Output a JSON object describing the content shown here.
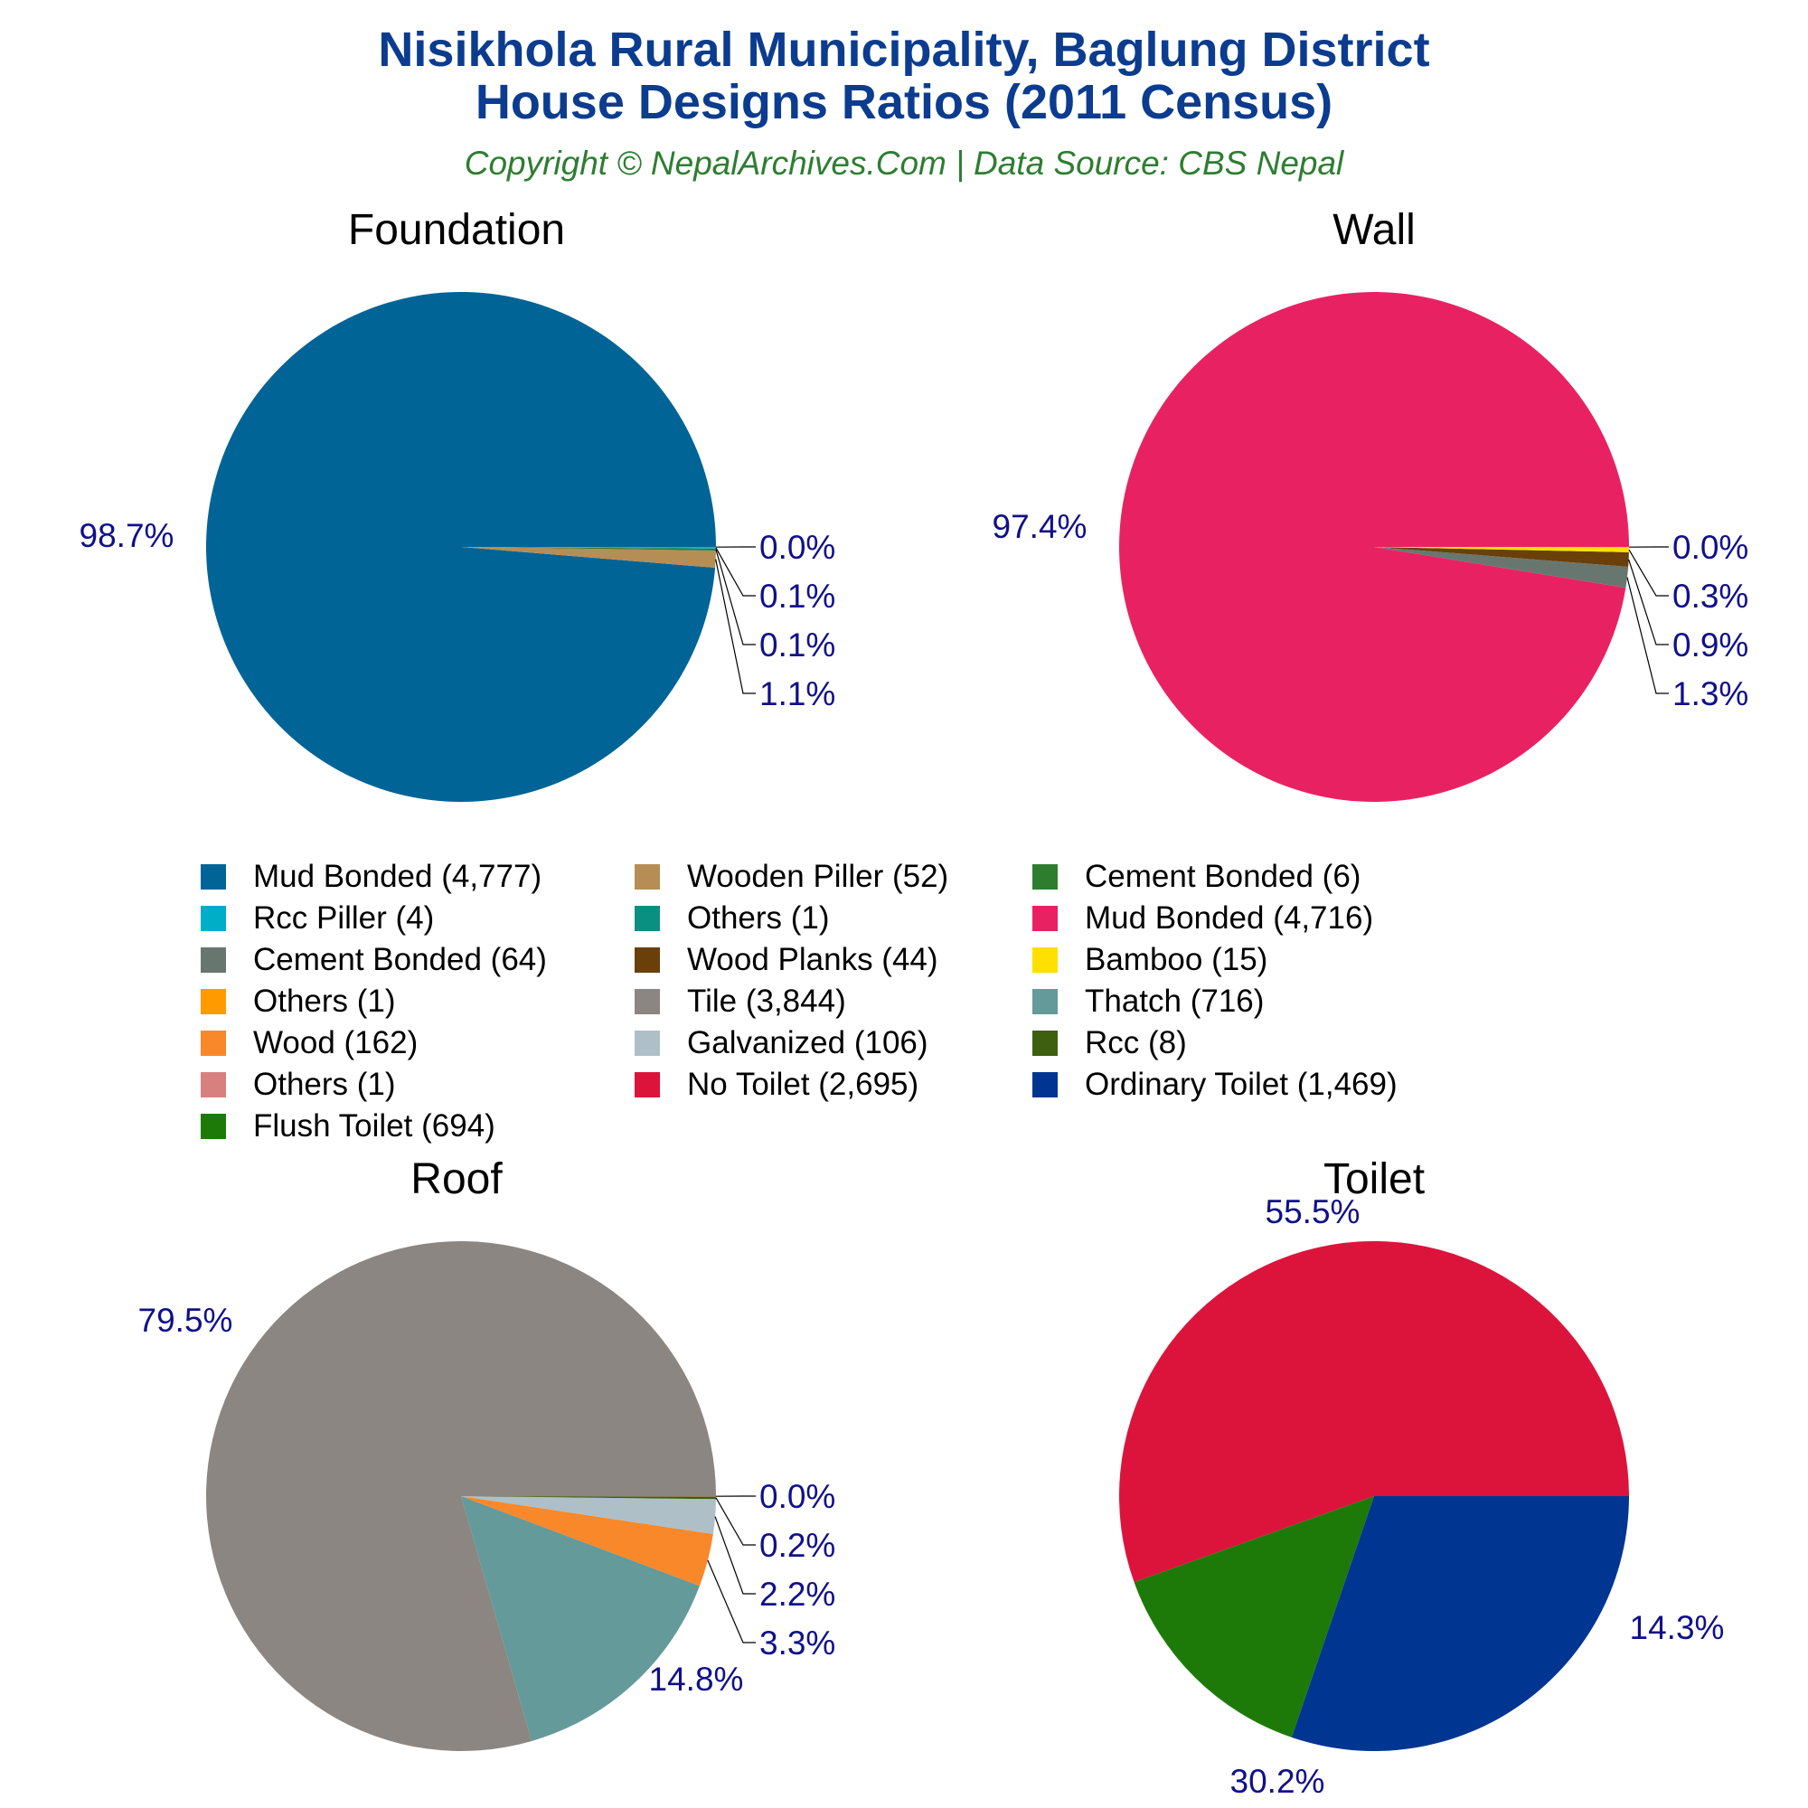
{
  "title_line1": "Nisikhola Rural Municipality, Baglung District",
  "title_line2": "House Designs Ratios (2011 Census)",
  "subtitle": "Copyright © NepalArchives.Com | Data Source: CBS Nepal",
  "chart_data": [
    {
      "type": "pie",
      "title": "Foundation",
      "slices": [
        {
          "label": "Mud Bonded",
          "value": 4777,
          "pct_label": "98.7%",
          "color": "#006496"
        },
        {
          "label": "Wooden Piller",
          "value": 52,
          "pct_label": "1.1%",
          "color": "#b58e55"
        },
        {
          "label": "Cement Bonded",
          "value": 6,
          "pct_label": "0.1%",
          "color": "#2e7d2e"
        },
        {
          "label": "Rcc Piller",
          "value": 4,
          "pct_label": "0.1%",
          "color": "#00aec8"
        },
        {
          "label": "Others",
          "value": 1,
          "pct_label": "0.0%",
          "color": "#0a9080"
        }
      ]
    },
    {
      "type": "pie",
      "title": "Wall",
      "slices": [
        {
          "label": "Mud Bonded",
          "value": 4716,
          "pct_label": "97.4%",
          "color": "#e82262"
        },
        {
          "label": "Cement Bonded",
          "value": 64,
          "pct_label": "1.3%",
          "color": "#67776f"
        },
        {
          "label": "Wood Planks",
          "value": 44,
          "pct_label": "0.9%",
          "color": "#6b3f0a"
        },
        {
          "label": "Bamboo",
          "value": 15,
          "pct_label": "0.3%",
          "color": "#ffe000"
        },
        {
          "label": "Others",
          "value": 1,
          "pct_label": "0.0%",
          "color": "#ff9a00"
        }
      ]
    },
    {
      "type": "pie",
      "title": "Roof",
      "slices": [
        {
          "label": "Tile",
          "value": 3844,
          "pct_label": "79.5%",
          "color": "#8b8681"
        },
        {
          "label": "Thatch",
          "value": 716,
          "pct_label": "14.8%",
          "color": "#649a99"
        },
        {
          "label": "Wood",
          "value": 162,
          "pct_label": "3.3%",
          "color": "#f8882a"
        },
        {
          "label": "Galvanized",
          "value": 106,
          "pct_label": "2.2%",
          "color": "#aebfc8"
        },
        {
          "label": "Rcc",
          "value": 8,
          "pct_label": "0.2%",
          "color": "#3e5e10"
        },
        {
          "label": "Others",
          "value": 1,
          "pct_label": "0.0%",
          "color": "#d88080"
        }
      ]
    },
    {
      "type": "pie",
      "title": "Toilet",
      "slices": [
        {
          "label": "No Toilet",
          "value": 2695,
          "pct_label": "55.5%",
          "color": "#dc143c"
        },
        {
          "label": "Flush Toilet",
          "value": 694,
          "pct_label": "14.3%",
          "color": "#1e7a08"
        },
        {
          "label": "Ordinary Toilet",
          "value": 1469,
          "pct_label": "30.2%",
          "color": "#003591"
        }
      ]
    }
  ],
  "legend": [
    {
      "text": "Mud Bonded (4,777)",
      "color": "#006496"
    },
    {
      "text": "Wooden Piller (52)",
      "color": "#b58e55"
    },
    {
      "text": "Cement Bonded (6)",
      "color": "#2e7d2e"
    },
    {
      "text": "Rcc Piller (4)",
      "color": "#00aec8"
    },
    {
      "text": "Others (1)",
      "color": "#0a9080"
    },
    {
      "text": "Mud Bonded (4,716)",
      "color": "#e82262"
    },
    {
      "text": "Cement Bonded (64)",
      "color": "#67776f"
    },
    {
      "text": "Wood Planks (44)",
      "color": "#6b3f0a"
    },
    {
      "text": "Bamboo (15)",
      "color": "#ffe000"
    },
    {
      "text": "Others (1)",
      "color": "#ff9a00"
    },
    {
      "text": "Tile (3,844)",
      "color": "#8b8681"
    },
    {
      "text": "Thatch (716)",
      "color": "#649a99"
    },
    {
      "text": "Wood (162)",
      "color": "#f8882a"
    },
    {
      "text": "Galvanized (106)",
      "color": "#aebfc8"
    },
    {
      "text": "Rcc (8)",
      "color": "#3e5e10"
    },
    {
      "text": "Others (1)",
      "color": "#d88080"
    },
    {
      "text": "No Toilet (2,695)",
      "color": "#dc143c"
    },
    {
      "text": "Ordinary Toilet (1,469)",
      "color": "#003591"
    },
    {
      "text": "Flush Toilet (694)",
      "color": "#1e7a08"
    }
  ]
}
